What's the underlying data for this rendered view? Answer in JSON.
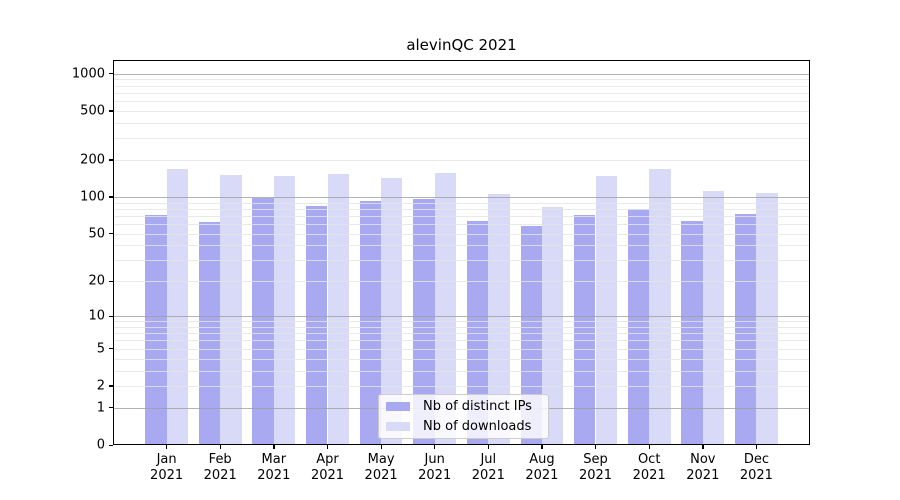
{
  "chart_data": {
    "type": "bar",
    "title": "alevinQC 2021",
    "categories": [
      {
        "month": "Jan",
        "year": "2021"
      },
      {
        "month": "Feb",
        "year": "2021"
      },
      {
        "month": "Mar",
        "year": "2021"
      },
      {
        "month": "Apr",
        "year": "2021"
      },
      {
        "month": "May",
        "year": "2021"
      },
      {
        "month": "Jun",
        "year": "2021"
      },
      {
        "month": "Jul",
        "year": "2021"
      },
      {
        "month": "Aug",
        "year": "2021"
      },
      {
        "month": "Sep",
        "year": "2021"
      },
      {
        "month": "Oct",
        "year": "2021"
      },
      {
        "month": "Nov",
        "year": "2021"
      },
      {
        "month": "Dec",
        "year": "2021"
      }
    ],
    "series": [
      {
        "name": "Nb of distinct IPs",
        "color": "#a8a9f1",
        "values": [
          71,
          62,
          98,
          84,
          93,
          96,
          63,
          58,
          71,
          80,
          63,
          73
        ]
      },
      {
        "name": "Nb of downloads",
        "color": "#d9daf8",
        "values": [
          170,
          152,
          149,
          154,
          143,
          156,
          106,
          83,
          148,
          168,
          112,
          107
        ]
      }
    ],
    "xlabel": "",
    "ylabel": "",
    "y_scale": "log10(1+x)",
    "ylim": [
      0,
      1280
    ],
    "y_ticks": [
      0,
      1,
      2,
      5,
      10,
      20,
      50,
      100,
      200,
      500,
      1000
    ],
    "grid": {
      "major_lines": [
        1,
        10,
        100,
        1000
      ],
      "minor_mantissas": [
        2,
        3,
        4,
        5,
        6,
        7,
        8,
        9
      ],
      "drawn_above_bars": true
    },
    "legend": {
      "position": "bottom-center",
      "entries": [
        "Nb of distinct IPs",
        "Nb of downloads"
      ]
    },
    "colors": {
      "background": "#ffffff",
      "spine": "#000000",
      "major_grid": "#b5b5b5",
      "minor_grid": "#ececec",
      "legend_border": "#cccccc"
    }
  }
}
